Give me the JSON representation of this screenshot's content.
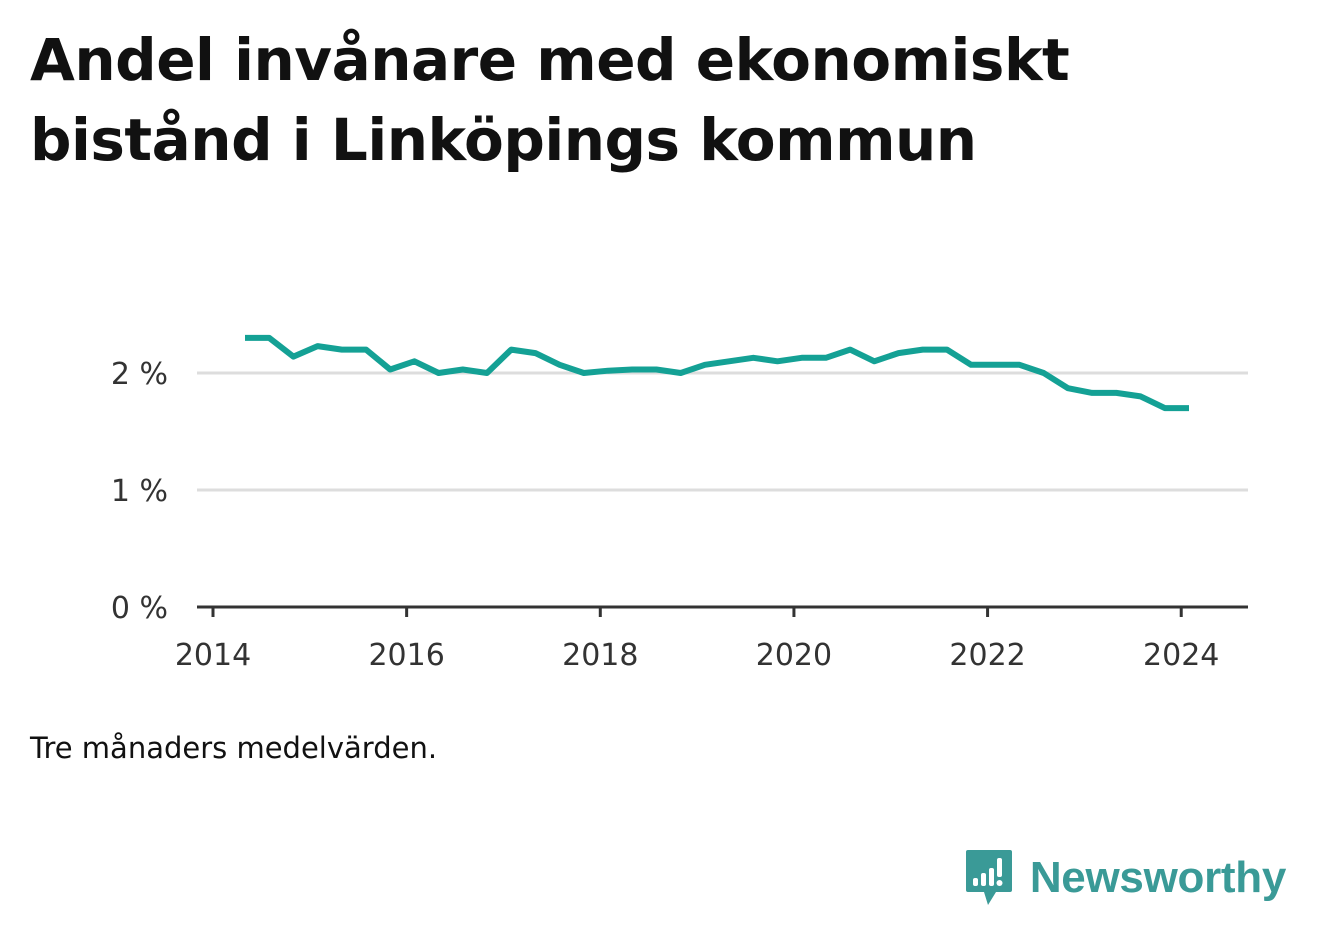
{
  "title": "Andel invånare med ekonomiskt bistånd i Linköpings kommun",
  "note": "Tre månaders medelvärden.",
  "brand": {
    "name": "Newsworthy",
    "color": "#3a9a97"
  },
  "chart_data": {
    "type": "line",
    "title": "Andel invånare med ekonomiskt bistånd i Linköpings kommun",
    "xlabel": "",
    "ylabel": "",
    "xlim": [
      2014.0,
      2024.7
    ],
    "ylim": [
      0,
      2.5
    ],
    "x_ticks": [
      2014,
      2016,
      2018,
      2020,
      2022,
      2024
    ],
    "x_tick_labels": [
      "2014",
      "2016",
      "2018",
      "2020",
      "2022",
      "2024"
    ],
    "y_ticks": [
      0,
      1,
      2
    ],
    "y_tick_labels": [
      "0 %",
      "1 %",
      "2 %"
    ],
    "grid": true,
    "line_color": "#14a195",
    "series": [
      {
        "name": "Andel invånare med ekonomiskt bistånd",
        "x": [
          2014.33,
          2014.58,
          2014.83,
          2015.08,
          2015.33,
          2015.58,
          2015.83,
          2016.08,
          2016.33,
          2016.58,
          2016.83,
          2017.08,
          2017.33,
          2017.58,
          2017.83,
          2018.08,
          2018.33,
          2018.58,
          2018.83,
          2019.08,
          2019.33,
          2019.58,
          2019.83,
          2020.08,
          2020.33,
          2020.58,
          2020.83,
          2021.08,
          2021.33,
          2021.58,
          2021.83,
          2022.08,
          2022.33,
          2022.58,
          2022.83,
          2023.08,
          2023.33,
          2023.58,
          2023.83,
          2024.08
        ],
        "values": [
          2.3,
          2.3,
          2.14,
          2.23,
          2.2,
          2.2,
          2.03,
          2.1,
          2.0,
          2.03,
          2.0,
          2.2,
          2.17,
          2.07,
          2.0,
          2.02,
          2.03,
          2.03,
          2.0,
          2.07,
          2.1,
          2.13,
          2.1,
          2.13,
          2.13,
          2.2,
          2.1,
          2.17,
          2.2,
          2.2,
          2.07,
          2.07,
          2.07,
          2.0,
          1.87,
          1.83,
          1.83,
          1.8,
          1.7,
          1.7
        ]
      }
    ]
  }
}
